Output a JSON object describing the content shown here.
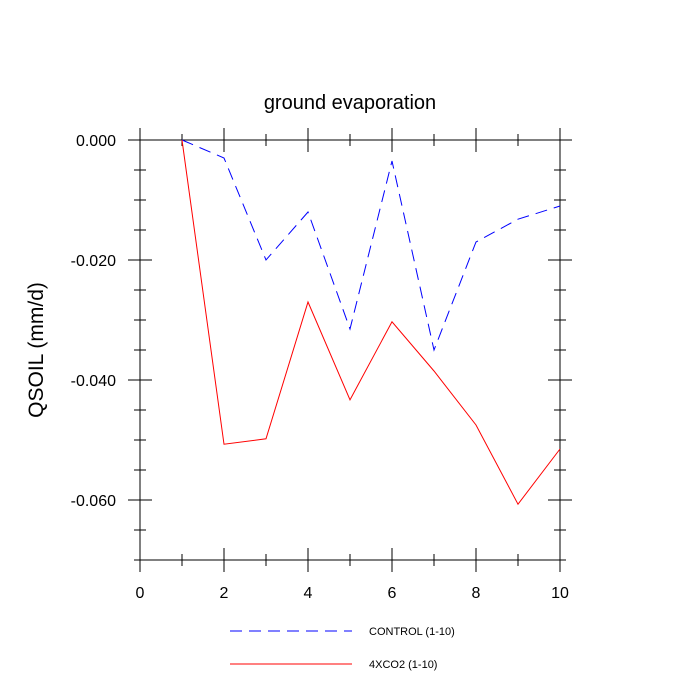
{
  "chart_data": {
    "type": "line",
    "title": "ground evaporation",
    "xlabel": "",
    "ylabel": "QSOIL  (mm/d)",
    "xlim": [
      0,
      10
    ],
    "ylim": [
      -0.07,
      0.0
    ],
    "x_ticks": [
      0,
      2,
      4,
      6,
      8,
      10
    ],
    "x_tick_labels": [
      "0",
      "2",
      "4",
      "6",
      "8",
      "10"
    ],
    "y_ticks": [
      0.0,
      -0.02,
      -0.04,
      -0.06
    ],
    "y_tick_labels": [
      "0.000",
      "-0.020",
      "-0.040",
      "-0.060"
    ],
    "grid": false,
    "legend_position": "bottom",
    "series": [
      {
        "name": "CONTROL (1-10)",
        "color": "#0000ff",
        "line_style": "dashed",
        "x": [
          1,
          2,
          3,
          4,
          5,
          6,
          7,
          8,
          9,
          10
        ],
        "values": [
          0.0,
          -0.003,
          -0.02,
          -0.012,
          -0.0315,
          -0.0035,
          -0.035,
          -0.017,
          -0.0132,
          -0.011
        ]
      },
      {
        "name": "4XCO2 (1-10)",
        "color": "#ff0000",
        "line_style": "solid",
        "x": [
          1,
          2,
          3,
          4,
          5,
          6,
          7,
          8,
          9,
          10
        ],
        "values": [
          0.0,
          -0.0507,
          -0.0498,
          -0.027,
          -0.0433,
          -0.0303,
          -0.0385,
          -0.0475,
          -0.0607,
          -0.0515
        ]
      }
    ]
  }
}
